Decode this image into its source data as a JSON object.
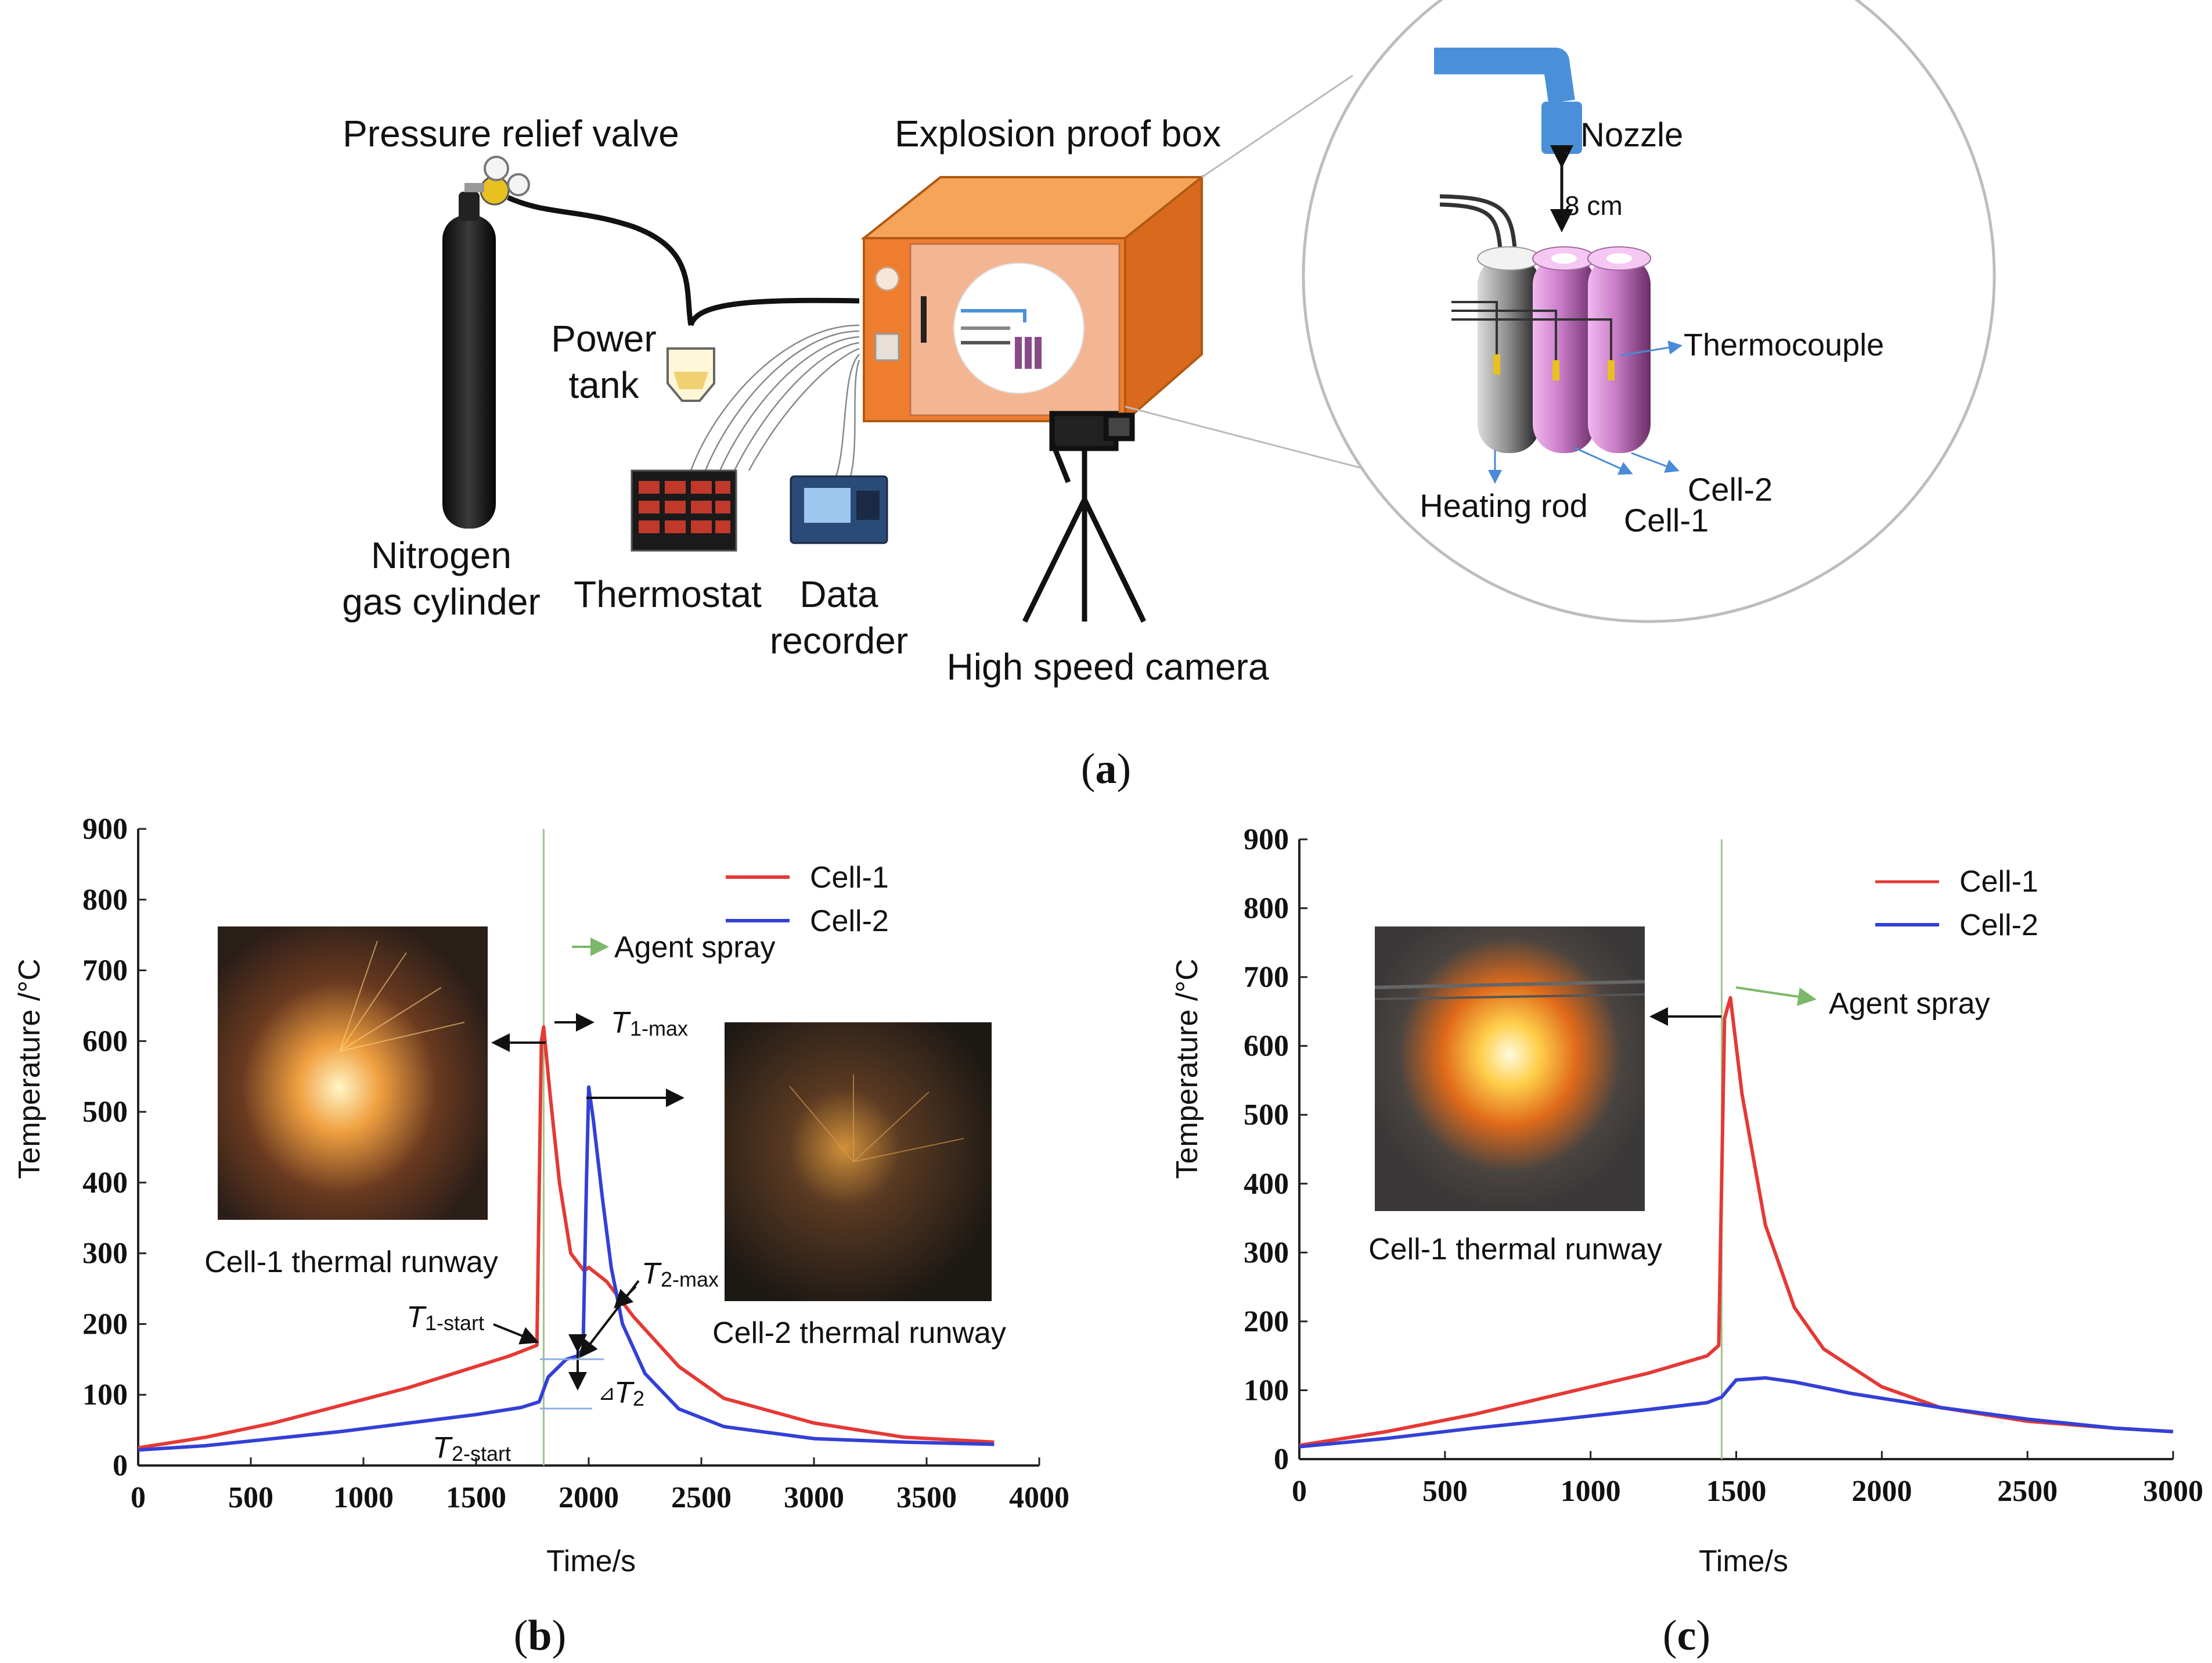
{
  "apparatus": {
    "pressure_relief_valve": "Pressure relief valve",
    "explosion_proof_box": "Explosion proof box",
    "nozzle": "Nozzle",
    "gap": "8 cm",
    "thermocouple": "Thermocouple",
    "power_tank": [
      "Power",
      "tank"
    ],
    "nitrogen_cylinder": [
      "Nitrogen",
      "gas cylinder"
    ],
    "thermostat": "Thermostat",
    "data_recorder": [
      "Data",
      "recorder"
    ],
    "high_speed_camera": "High speed camera",
    "heating_rod": "Heating rod",
    "cell1": "Cell-1",
    "cell2": "Cell-2",
    "caption_letter": "a"
  },
  "colors": {
    "cell1": "#e53935",
    "cell2": "#3340d6",
    "agent_line": "#9dc48a",
    "box": "#ef7d2e",
    "nozzle": "#4a90d9"
  },
  "chart_data": [
    {
      "type": "line",
      "caption_letter": "b",
      "xlabel": "Time/s",
      "ylabel": "Temperature /°C",
      "xlim": [
        0,
        4000
      ],
      "ylim": [
        0,
        900
      ],
      "xticks": [
        0,
        500,
        1000,
        1500,
        2000,
        2500,
        3000,
        3500,
        4000
      ],
      "yticks": [
        0,
        100,
        200,
        300,
        400,
        500,
        600,
        700,
        800,
        900
      ],
      "agent_spray_time": 1800,
      "legend": [
        "Cell-1",
        "Cell-2"
      ],
      "annotations": {
        "agent_spray": "Agent spray",
        "t1_max": "T",
        "t1_max_sub": "1-max",
        "t1_start": "T",
        "t1_start_sub": "1-start",
        "t2_max": "T",
        "t2_max_sub": "2-max",
        "t2_start": "T",
        "t2_start_sub": "2-start",
        "delta_t2": "T",
        "delta_t2_sub": "2",
        "delta_prefix": "⊿",
        "photo1_caption": "Cell-1 thermal runway",
        "photo2_caption": "Cell-2 thermal runway"
      },
      "series": [
        {
          "name": "Cell-1",
          "x": [
            0,
            300,
            600,
            900,
            1200,
            1500,
            1650,
            1770,
            1790,
            1800,
            1830,
            1870,
            1920,
            1980,
            2000,
            2080,
            2200,
            2400,
            2600,
            3000,
            3400,
            3800
          ],
          "y": [
            25,
            40,
            60,
            85,
            110,
            140,
            155,
            170,
            600,
            620,
            520,
            400,
            300,
            275,
            280,
            260,
            210,
            140,
            95,
            60,
            40,
            33
          ]
        },
        {
          "name": "Cell-2",
          "x": [
            0,
            300,
            600,
            900,
            1200,
            1500,
            1700,
            1780,
            1820,
            1900,
            1950,
            1975,
            1990,
            2000,
            2020,
            2060,
            2100,
            2150,
            2250,
            2400,
            2600,
            3000,
            3400,
            3800
          ],
          "y": [
            22,
            28,
            38,
            48,
            60,
            72,
            82,
            90,
            125,
            150,
            155,
            165,
            400,
            535,
            490,
            380,
            280,
            200,
            130,
            80,
            55,
            38,
            33,
            30
          ]
        }
      ]
    },
    {
      "type": "line",
      "caption_letter": "c",
      "xlabel": "Time/s",
      "ylabel": "Temperature /°C",
      "xlim": [
        0,
        3000
      ],
      "ylim": [
        0,
        900
      ],
      "xticks": [
        0,
        500,
        1000,
        1500,
        2000,
        2500,
        3000
      ],
      "yticks": [
        0,
        100,
        200,
        300,
        400,
        500,
        600,
        700,
        800,
        900
      ],
      "agent_spray_time": 1450,
      "legend": [
        "Cell-1",
        "Cell-2"
      ],
      "annotations": {
        "agent_spray": "Agent spray",
        "photo1_caption": "Cell-1 thermal runway"
      },
      "series": [
        {
          "name": "Cell-1",
          "x": [
            0,
            300,
            600,
            900,
            1200,
            1400,
            1440,
            1460,
            1480,
            1520,
            1600,
            1700,
            1800,
            2000,
            2200,
            2500,
            2800,
            3000
          ],
          "y": [
            20,
            40,
            65,
            95,
            125,
            150,
            165,
            640,
            670,
            530,
            340,
            220,
            160,
            105,
            75,
            55,
            45,
            40
          ]
        },
        {
          "name": "Cell-2",
          "x": [
            0,
            300,
            600,
            900,
            1200,
            1400,
            1450,
            1500,
            1600,
            1700,
            1900,
            2200,
            2500,
            2800,
            3000
          ],
          "y": [
            18,
            30,
            45,
            58,
            72,
            82,
            90,
            115,
            118,
            112,
            95,
            75,
            58,
            45,
            40
          ]
        }
      ]
    }
  ]
}
